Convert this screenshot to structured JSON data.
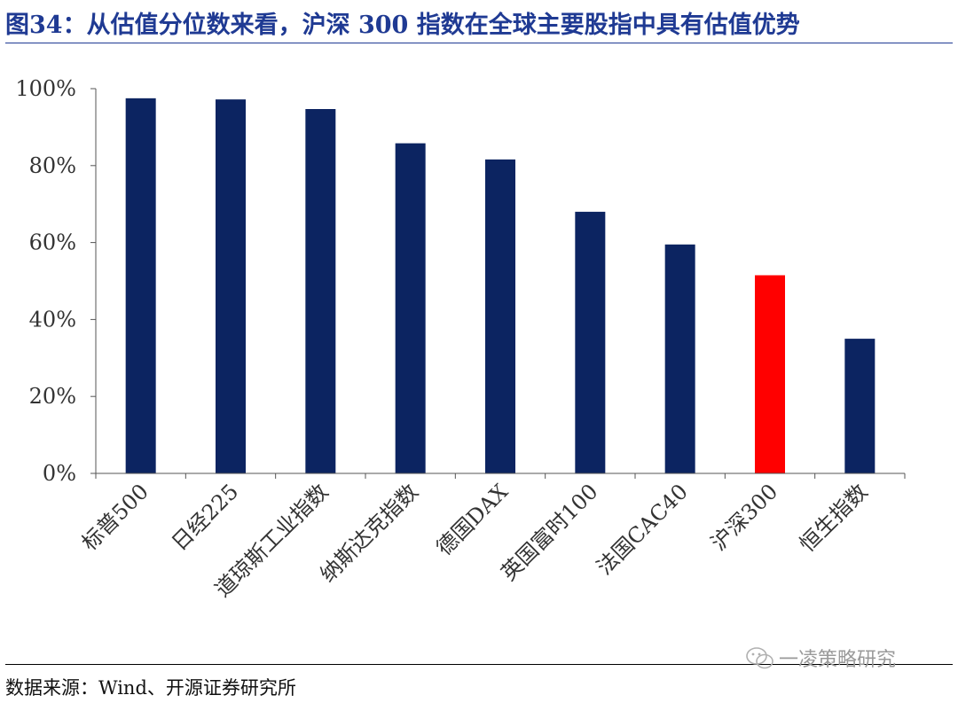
{
  "title": "图34：从估值分位数来看，沪深 300 指数在全球主要股指中具有估值优势",
  "source": "数据来源：Wind、开源证券研究所",
  "watermark": "一凌策略研究",
  "watermark_icon": "wechat-icon",
  "colors": {
    "bar": "#0c2461",
    "highlight": "#ff0000",
    "title": "#1f3a93"
  },
  "chart_data": {
    "type": "bar",
    "title": "",
    "xlabel": "",
    "ylabel": "",
    "categories": [
      "标普500",
      "日经225",
      "道琼斯工业指数",
      "纳斯达克指数",
      "德国DAX",
      "英国富时100",
      "法国CAC40",
      "沪深300",
      "恒生指数"
    ],
    "values": [
      97.5,
      97.2,
      94.7,
      85.8,
      81.6,
      68.0,
      59.5,
      51.5,
      35.0
    ],
    "highlight_category": "沪深300",
    "ylim": [
      0,
      100
    ],
    "yticks": [
      "0%",
      "20%",
      "40%",
      "60%",
      "80%",
      "100%"
    ],
    "ytick_values": [
      0,
      20,
      40,
      60,
      80,
      100
    ],
    "grid": false,
    "legend": "none"
  }
}
